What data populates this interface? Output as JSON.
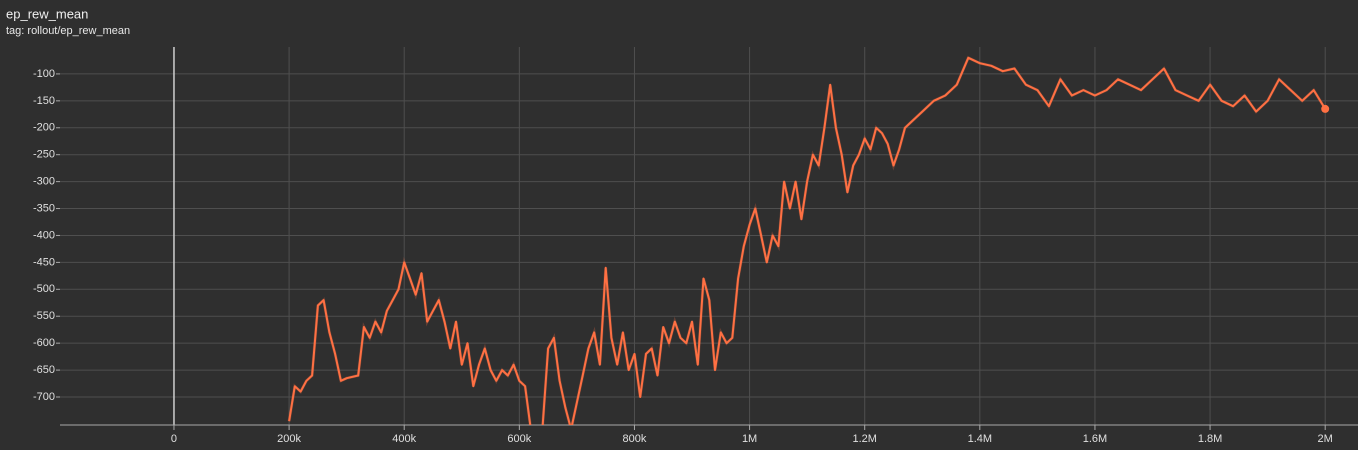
{
  "chart_data": {
    "type": "line",
    "title": "ep_rew_mean",
    "subtitle": "tag: rollout/ep_rew_mean",
    "color": "#ff7043",
    "grid": true,
    "x": [
      200000,
      210000,
      220000,
      230000,
      240000,
      250000,
      260000,
      270000,
      280000,
      290000,
      300000,
      320000,
      330000,
      340000,
      350000,
      360000,
      370000,
      380000,
      390000,
      400000,
      410000,
      420000,
      430000,
      440000,
      450000,
      460000,
      470000,
      480000,
      490000,
      500000,
      510000,
      520000,
      530000,
      540000,
      550000,
      560000,
      570000,
      580000,
      590000,
      600000,
      610000,
      620000,
      640000,
      650000,
      660000,
      670000,
      680000,
      690000,
      700000,
      710000,
      720000,
      730000,
      740000,
      750000,
      760000,
      770000,
      780000,
      790000,
      800000,
      810000,
      820000,
      830000,
      840000,
      850000,
      860000,
      870000,
      880000,
      890000,
      900000,
      910000,
      920000,
      930000,
      940000,
      950000,
      960000,
      970000,
      980000,
      990000,
      1000000,
      1010000,
      1020000,
      1030000,
      1040000,
      1050000,
      1060000,
      1070000,
      1080000,
      1090000,
      1100000,
      1110000,
      1120000,
      1130000,
      1140000,
      1150000,
      1160000,
      1170000,
      1180000,
      1190000,
      1200000,
      1210000,
      1220000,
      1230000,
      1240000,
      1250000,
      1260000,
      1270000,
      1280000,
      1300000,
      1320000,
      1340000,
      1360000,
      1380000,
      1400000,
      1420000,
      1440000,
      1460000,
      1480000,
      1500000,
      1520000,
      1540000,
      1560000,
      1580000,
      1600000,
      1620000,
      1640000,
      1660000,
      1680000,
      1700000,
      1720000,
      1740000,
      1760000,
      1780000,
      1800000,
      1820000,
      1840000,
      1860000,
      1880000,
      1900000,
      1920000,
      1940000,
      1960000,
      1980000,
      2000000
    ],
    "values": [
      -745,
      -680,
      -690,
      -670,
      -660,
      -530,
      -520,
      -580,
      -620,
      -670,
      -665,
      -660,
      -570,
      -590,
      -560,
      -580,
      -540,
      -520,
      -500,
      -450,
      -480,
      -510,
      -470,
      -560,
      -540,
      -520,
      -560,
      -610,
      -560,
      -640,
      -600,
      -680,
      -640,
      -610,
      -650,
      -670,
      -650,
      -660,
      -640,
      -670,
      -680,
      -760,
      -760,
      -610,
      -590,
      -670,
      -720,
      -760,
      -710,
      -660,
      -610,
      -580,
      -640,
      -460,
      -590,
      -640,
      -580,
      -650,
      -620,
      -700,
      -620,
      -610,
      -660,
      -570,
      -600,
      -560,
      -590,
      -600,
      -560,
      -640,
      -480,
      -520,
      -650,
      -580,
      -600,
      -590,
      -480,
      -420,
      -380,
      -350,
      -400,
      -450,
      -400,
      -420,
      -300,
      -350,
      -300,
      -370,
      -300,
      -250,
      -270,
      -200,
      -120,
      -200,
      -250,
      -320,
      -270,
      -250,
      -220,
      -240,
      -200,
      -210,
      -230,
      -270,
      -240,
      -200,
      -190,
      -170,
      -150,
      -140,
      -120,
      -70,
      -80,
      -85,
      -95,
      -90,
      -120,
      -130,
      -160,
      -110,
      -140,
      -130,
      -140,
      -130,
      -110,
      -120,
      -130,
      -110,
      -90,
      -130,
      -140,
      -150,
      -120,
      -150,
      -160,
      -140,
      -170,
      -150,
      -110,
      -130,
      -150,
      -130,
      -165
    ],
    "xlim": [
      -198000,
      2057000
    ],
    "ylim": [
      -752,
      -50
    ],
    "xticks": [
      {
        "value": 0,
        "label": "0"
      },
      {
        "value": 200000,
        "label": "200k"
      },
      {
        "value": 400000,
        "label": "400k"
      },
      {
        "value": 600000,
        "label": "600k"
      },
      {
        "value": 800000,
        "label": "800k"
      },
      {
        "value": 1000000,
        "label": "1M"
      },
      {
        "value": 1200000,
        "label": "1.2M"
      },
      {
        "value": 1400000,
        "label": "1.4M"
      },
      {
        "value": 1600000,
        "label": "1.6M"
      },
      {
        "value": 1800000,
        "label": "1.8M"
      },
      {
        "value": 2000000,
        "label": "2M"
      }
    ],
    "yticks": [
      -700,
      -650,
      -600,
      -550,
      -500,
      -450,
      -400,
      -350,
      -300,
      -250,
      -200,
      -150,
      -100
    ]
  }
}
